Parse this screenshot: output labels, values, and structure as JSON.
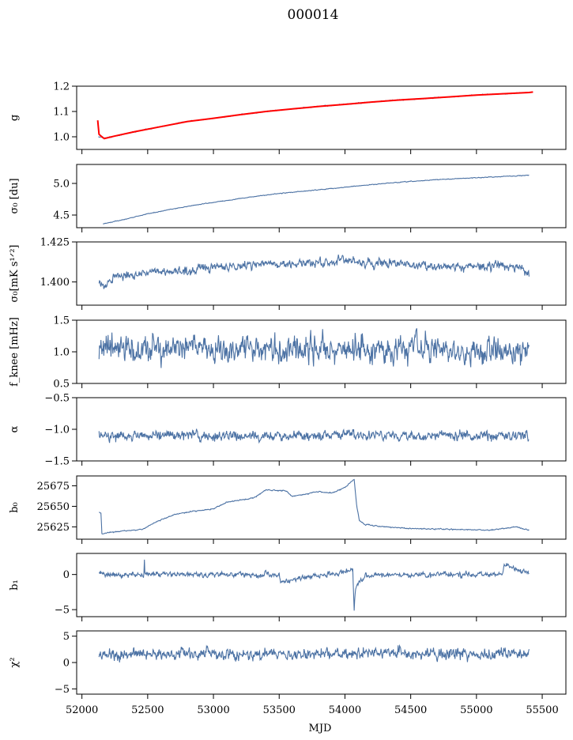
{
  "title": "000014",
  "xlabel": "MJD",
  "colors": {
    "series": "#4c72a4",
    "fit": "#ff0000",
    "axis": "#000000"
  },
  "chart_data": {
    "type": "line",
    "x_range": [
      51960,
      55680
    ],
    "x_ticks": [
      "52000",
      "52500",
      "53000",
      "53500",
      "54000",
      "54500",
      "55000",
      "55500"
    ],
    "x_tick_values": [
      52000,
      52500,
      53000,
      53500,
      54000,
      54500,
      55000,
      55500
    ],
    "panels": [
      {
        "key": "g",
        "ylabel": "g",
        "ylim": [
          0.95,
          1.2
        ],
        "yticks": [
          "1.0",
          "1.1",
          "1.2"
        ],
        "ytick_values": [
          1.0,
          1.1,
          1.2
        ],
        "series": [
          {
            "x": [
              52125,
              52170,
              52250,
              52400,
              52600,
              52800,
              53000,
              53200,
              53400,
              53600,
              53800,
              54000,
              54200,
              54400,
              54600,
              54800,
              55000,
              55200,
              55400
            ],
            "y": [
              1.0,
              0.995,
              1.002,
              1.02,
              1.04,
              1.06,
              1.073,
              1.087,
              1.1,
              1.11,
              1.12,
              1.128,
              1.137,
              1.145,
              1.151,
              1.158,
              1.165,
              1.17,
              1.175
            ],
            "noise": 0.0015
          }
        ],
        "fit": {
          "x": [
            52120,
            52130,
            52140,
            52170,
            52250,
            52400,
            52600,
            52800,
            53000,
            53200,
            53400,
            53600,
            53800,
            54000,
            54200,
            54400,
            54600,
            54800,
            55000,
            55200,
            55400,
            55430
          ],
          "y": [
            1.065,
            1.01,
            1.005,
            0.993,
            1.003,
            1.02,
            1.04,
            1.06,
            1.073,
            1.087,
            1.1,
            1.11,
            1.12,
            1.128,
            1.137,
            1.145,
            1.151,
            1.158,
            1.165,
            1.17,
            1.175,
            1.177
          ]
        }
      },
      {
        "key": "sigma0",
        "ylabel": "σ₀ [du]",
        "ylim": [
          4.3,
          5.3
        ],
        "yticks": [
          "4.5",
          "5.0"
        ],
        "ytick_values": [
          4.5,
          5.0
        ],
        "series": [
          {
            "x": [
              52160,
              52300,
              52500,
              52700,
              52900,
              53100,
              53300,
              53500,
              53700,
              53900,
              54100,
              54300,
              54500,
              54700,
              54900,
              55100,
              55300,
              55400
            ],
            "y": [
              4.36,
              4.42,
              4.52,
              4.6,
              4.67,
              4.73,
              4.79,
              4.84,
              4.88,
              4.92,
              4.96,
              5.0,
              5.03,
              5.06,
              5.08,
              5.1,
              5.12,
              5.13
            ],
            "noise": 0.004
          }
        ]
      },
      {
        "key": "sigma0_mks",
        "ylabel": "σ₀[mK s¹ᐟ²]",
        "ylim": [
          1.3855,
          1.425
        ],
        "yticks": [
          "1.400",
          "1.425"
        ],
        "ytick_values": [
          1.4,
          1.425
        ],
        "series": [
          {
            "x": [
              52130,
              52180,
              52250,
              52400,
              52600,
              52800,
              53000,
              53200,
              53400,
              53600,
              53800,
              54000,
              54200,
              54400,
              54600,
              54800,
              55000,
              55200,
              55300,
              55400
            ],
            "y": [
              1.399,
              1.397,
              1.404,
              1.405,
              1.406,
              1.407,
              1.409,
              1.41,
              1.412,
              1.411,
              1.412,
              1.413,
              1.411,
              1.412,
              1.41,
              1.41,
              1.409,
              1.411,
              1.41,
              1.406
            ],
            "noise": 0.0022
          }
        ]
      },
      {
        "key": "fknee",
        "ylabel": "f_knee [mHz]",
        "ylim": [
          0.5,
          1.5
        ],
        "yticks": [
          "0.5",
          "1.0",
          "1.5"
        ],
        "ytick_values": [
          0.5,
          1.0,
          1.5
        ],
        "series": [
          {
            "x": [
              52130,
              55400
            ],
            "y": [
              1.05,
              1.03
            ],
            "noise": 0.17
          }
        ]
      },
      {
        "key": "alpha",
        "ylabel": "α",
        "ylim": [
          -1.5,
          -0.5
        ],
        "yticks": [
          "−1.5",
          "−1.0",
          "−0.5"
        ],
        "ytick_values": [
          -1.5,
          -1.0,
          -0.5
        ],
        "series": [
          {
            "x": [
              52130,
              55400
            ],
            "y": [
              -1.1,
              -1.1
            ],
            "noise": 0.065
          }
        ]
      },
      {
        "key": "b0",
        "ylabel": "b₀",
        "ylim": [
          25610,
          25687
        ],
        "yticks": [
          "25625",
          "25650",
          "25675"
        ],
        "ytick_values": [
          25625,
          25650,
          25675
        ],
        "series": [
          {
            "x": [
              52130,
              52145,
              52152,
              52200,
              52300,
              52400,
              52460,
              52550,
              52700,
              52800,
              53000,
              53100,
              53300,
              53400,
              53550,
              53600,
              53700,
              53800,
              53900,
              54000,
              54070,
              54090,
              54110,
              54150,
              54300,
              54500,
              54800,
              55100,
              55300,
              55400
            ],
            "y": [
              25643,
              25642,
              25616,
              25618,
              25620,
              25621,
              25622,
              25630,
              25640,
              25643,
              25647,
              25655,
              25660,
              25670,
              25669,
              25662,
              25665,
              25668,
              25666,
              25673,
              25683,
              25650,
              25633,
              25628,
              25625,
              25623,
              25622,
              25621,
              25625,
              25621
            ],
            "noise": 0.5
          }
        ]
      },
      {
        "key": "b1",
        "ylabel": "b₁",
        "ylim": [
          -6,
          3
        ],
        "yticks": [
          "−5",
          "0"
        ],
        "ytick_values": [
          -5,
          0
        ],
        "series": [
          {
            "x": [
              52130,
              52470,
              52475,
              52480,
              52490,
              53500,
              53510,
              54000,
              54060,
              54070,
              54080,
              54100,
              54150,
              54300,
              55200,
              55210,
              55400
            ],
            "y": [
              0,
              0,
              2.6,
              0,
              0,
              0,
              -1.0,
              0.3,
              0.8,
              -5.3,
              -2.5,
              -1.2,
              -0.3,
              0,
              0,
              1.5,
              0
            ],
            "noise": 0.3
          }
        ]
      },
      {
        "key": "chi2",
        "ylabel": "χ²",
        "ylim": [
          -6,
          6
        ],
        "yticks": [
          "−5",
          "0",
          "5"
        ],
        "ytick_values": [
          -5,
          0,
          5
        ],
        "series": [
          {
            "x": [
              52130,
              55400
            ],
            "y": [
              1.6,
              1.6
            ],
            "noise": 0.9
          }
        ]
      }
    ]
  }
}
